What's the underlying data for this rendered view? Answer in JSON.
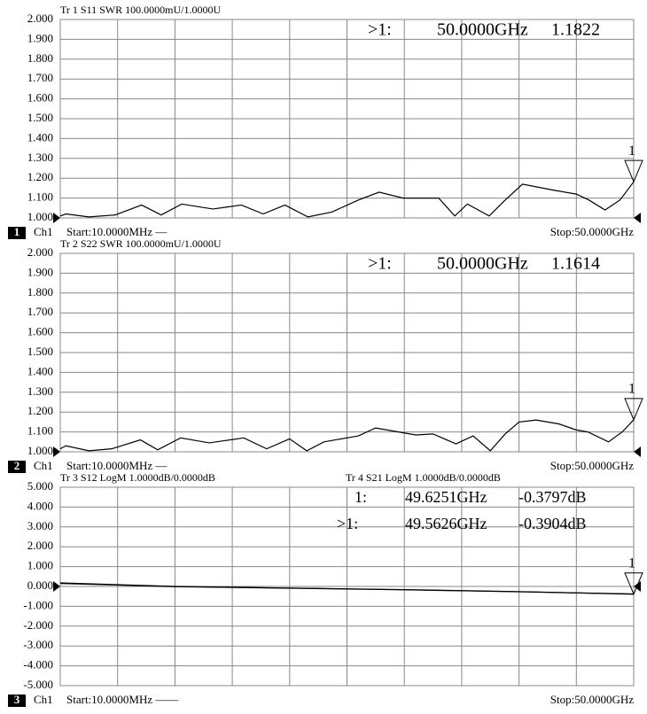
{
  "chart_data": [
    {
      "type": "line",
      "reference": 1,
      "x": [
        0.01,
        0.5,
        2.5,
        4.8,
        7.1,
        8.8,
        10.6,
        13.3,
        15.8,
        17.7,
        19.6,
        21.6,
        23.7,
        26,
        27.8,
        29.9,
        31.8,
        33,
        34.4,
        35.5,
        37.4,
        38.8,
        40.3,
        43,
        45,
        46.1,
        47.5,
        48.8,
        50
      ],
      "xlim": [
        0.01,
        50
      ],
      "series": [
        {
          "name": "Tr 1  S11 SWR 100.0000mU/1.0000U",
          "color": "#000000",
          "values": [
            1.01,
            1.02,
            1.005,
            1.015,
            1.065,
            1.015,
            1.07,
            1.045,
            1.065,
            1.02,
            1.065,
            1.005,
            1.03,
            1.09,
            1.13,
            1.1,
            1.1,
            1.1,
            1.01,
            1.07,
            1.01,
            1.09,
            1.17,
            1.14,
            1.12,
            1.09,
            1.04,
            1.09,
            1.1822
          ]
        }
      ],
      "ylim": [
        1,
        2
      ],
      "yticks": [
        {
          "value": 2,
          "label": "2.000"
        },
        {
          "value": 1.9,
          "label": "1.900"
        },
        {
          "value": 1.8,
          "label": "1.800"
        },
        {
          "value": 1.7,
          "label": "1.700"
        },
        {
          "value": 1.6,
          "label": "1.600"
        },
        {
          "value": 1.5,
          "label": "1.500"
        },
        {
          "value": 1.4,
          "label": "1.400"
        },
        {
          "value": 1.3,
          "label": "1.300"
        },
        {
          "value": 1.2,
          "label": "1.200"
        },
        {
          "value": 1.1,
          "label": "1.100"
        },
        {
          "value": 1,
          "label": "1.000"
        }
      ],
      "grid": true,
      "marker_number": "1",
      "markers": [
        {
          "label": ">1:",
          "freq": "50.0000GHz",
          "value": "1.1822"
        }
      ],
      "footer": {
        "trace_number": "1",
        "channel": "Ch1",
        "start": "Start:10.0000MHz —",
        "stop": "Stop:50.0000GHz"
      }
    },
    {
      "type": "line",
      "reference": 1,
      "x": [
        0.01,
        0.5,
        2.5,
        4.5,
        7,
        8.5,
        10.5,
        13,
        16,
        18,
        20,
        21.5,
        23,
        25,
        26,
        27.5,
        29.5,
        31,
        32.5,
        34.5,
        36,
        37.5,
        38.8,
        40,
        41.5,
        43.5,
        45,
        46,
        47.8,
        49,
        50
      ],
      "xlim": [
        0.01,
        50
      ],
      "series": [
        {
          "name": "Tr 2  S22 SWR 100.0000mU/1.0000U",
          "color": "#000000",
          "values": [
            1.015,
            1.03,
            1.005,
            1.015,
            1.06,
            1.01,
            1.07,
            1.045,
            1.07,
            1.015,
            1.065,
            1.005,
            1.05,
            1.07,
            1.08,
            1.12,
            1.1,
            1.085,
            1.09,
            1.04,
            1.08,
            1.005,
            1.09,
            1.15,
            1.16,
            1.14,
            1.11,
            1.1,
            1.05,
            1.1,
            1.1614
          ]
        }
      ],
      "ylim": [
        1,
        2
      ],
      "yticks": [
        {
          "value": 2,
          "label": "2.000"
        },
        {
          "value": 1.9,
          "label": "1.900"
        },
        {
          "value": 1.8,
          "label": "1.800"
        },
        {
          "value": 1.7,
          "label": "1.700"
        },
        {
          "value": 1.6,
          "label": "1.600"
        },
        {
          "value": 1.5,
          "label": "1.500"
        },
        {
          "value": 1.4,
          "label": "1.400"
        },
        {
          "value": 1.3,
          "label": "1.300"
        },
        {
          "value": 1.2,
          "label": "1.200"
        },
        {
          "value": 1.1,
          "label": "1.100"
        },
        {
          "value": 1,
          "label": "1.000"
        }
      ],
      "grid": true,
      "marker_number": "1",
      "markers": [
        {
          "label": ">1:",
          "freq": "50.0000GHz",
          "value": "1.1614"
        }
      ],
      "footer": {
        "trace_number": "2",
        "channel": "Ch1",
        "start": "Start:10.0000MHz —",
        "stop": "Stop:50.0000GHz"
      }
    },
    {
      "type": "line",
      "reference": 0,
      "x": [
        0.01,
        10,
        20,
        30,
        40,
        50
      ],
      "xlim": [
        0.01,
        50
      ],
      "series": [
        {
          "name": "Tr 3  S12 LogM 1.0000dB/0.0000dB",
          "color": "#000000",
          "values": [
            0.18,
            0,
            -0.08,
            -0.16,
            -0.26,
            -0.39
          ]
        },
        {
          "name": "Tr 4  S21 LogM 1.0000dB/0.0000dB",
          "color": "#000000",
          "values": [
            0.15,
            -0.01,
            -0.09,
            -0.17,
            -0.27,
            -0.38
          ]
        }
      ],
      "ylim": [
        -5,
        5
      ],
      "yticks": [
        {
          "value": 5,
          "label": "5.000"
        },
        {
          "value": 4,
          "label": "4.000"
        },
        {
          "value": 3,
          "label": "3.000"
        },
        {
          "value": 2,
          "label": "2.000"
        },
        {
          "value": 1,
          "label": "1.000"
        },
        {
          "value": 0,
          "label": "0.000"
        },
        {
          "value": -1,
          "label": "-1.000"
        },
        {
          "value": -2,
          "label": "-2.000"
        },
        {
          "value": -3,
          "label": "-3.000"
        },
        {
          "value": -4,
          "label": "-4.000"
        },
        {
          "value": -5,
          "label": "-5.000"
        }
      ],
      "grid": true,
      "marker_number": "1",
      "markers": [
        {
          "label": "1:",
          "freq": "49.6251GHz",
          "value": "-0.3797dB"
        },
        {
          "label": ">1:",
          "freq": "49.5626GHz",
          "value": "-0.3904dB"
        }
      ],
      "footer": {
        "trace_number": "3",
        "channel": "Ch1",
        "start": "Start:10.0000MHz ——",
        "stop": "Stop:50.0000GHz"
      }
    }
  ]
}
